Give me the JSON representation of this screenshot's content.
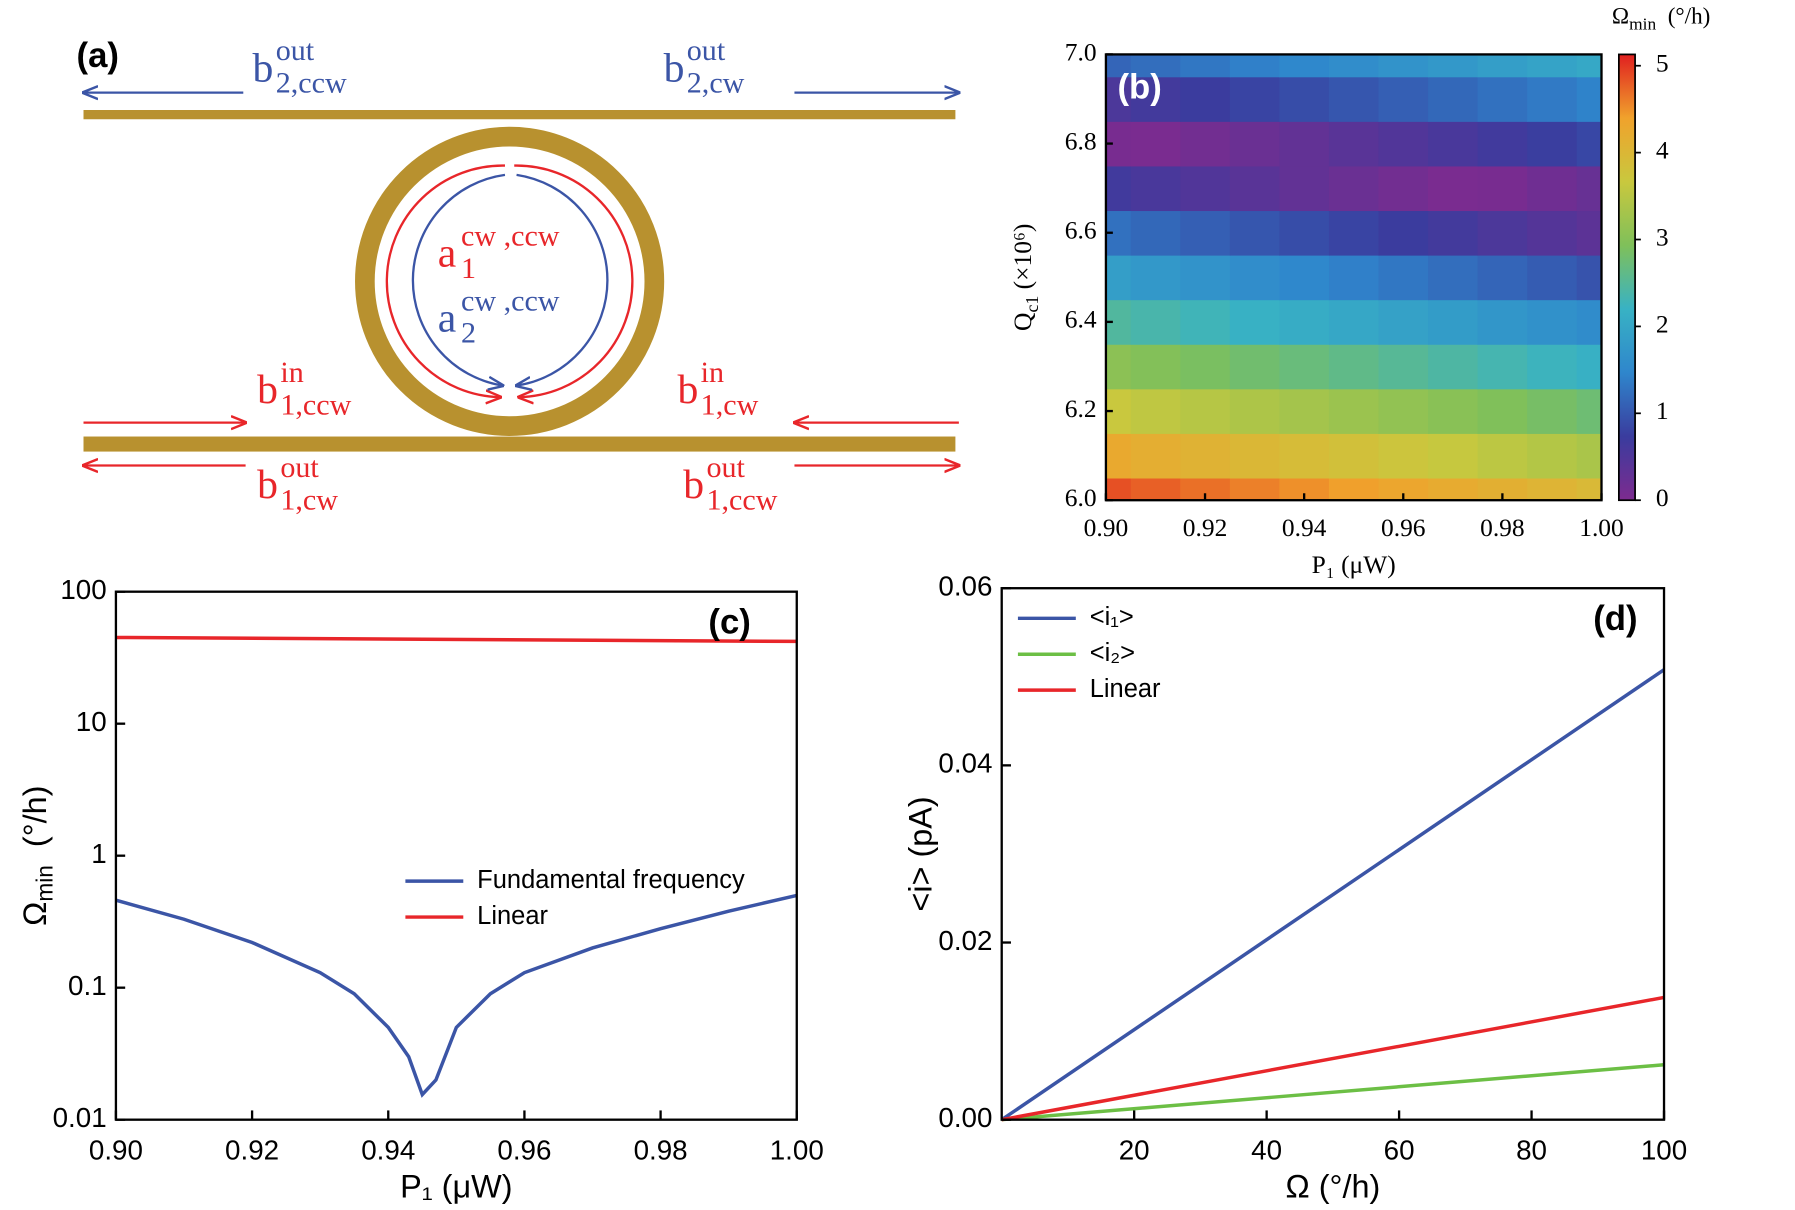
{
  "diagram": {
    "panel_label": "(a)",
    "labels": [
      {
        "base": "b",
        "sup": "out",
        "sub": "2,ccw",
        "color": "#3b55a6"
      },
      {
        "base": "b",
        "sup": "out",
        "sub": "2,cw",
        "color": "#3b55a6"
      },
      {
        "base": "a",
        "sup": "cw ,ccw",
        "sub": "1",
        "color": "#e8262a"
      },
      {
        "base": "a",
        "sup": "cw ,ccw",
        "sub": "2",
        "color": "#3b55a6"
      },
      {
        "base": "b",
        "sup": "in",
        "sub": "1,ccw",
        "color": "#e8262a"
      },
      {
        "base": "b",
        "sup": "in",
        "sub": "1,cw",
        "color": "#e8262a"
      },
      {
        "base": "b",
        "sup": "out",
        "sub": "1,cw",
        "color": "#e8262a"
      },
      {
        "base": "b",
        "sup": "out",
        "sub": "1,ccw",
        "color": "#e8262a"
      }
    ]
  },
  "chart_data": [
    {
      "type": "heatmap",
      "panel_label": "(b)",
      "x": [
        0.9,
        0.91,
        0.92,
        0.93,
        0.94,
        0.95,
        0.96,
        0.97,
        0.98,
        0.99,
        1.0
      ],
      "y": [
        6.0,
        6.1,
        6.2,
        6.3,
        6.4,
        6.5,
        6.6,
        6.7,
        6.8,
        6.9,
        7.0
      ],
      "z": [
        [
          4.86,
          4.77,
          4.68,
          4.59,
          4.5,
          4.41,
          4.32,
          4.23,
          4.14,
          4.05,
          3.96
        ],
        [
          4.26,
          4.17,
          4.08,
          3.99,
          3.9,
          3.81,
          3.72,
          3.63,
          3.54,
          3.45,
          3.36
        ],
        [
          3.66,
          3.57,
          3.48,
          3.39,
          3.3,
          3.21,
          3.12,
          3.03,
          2.94,
          2.85,
          2.76
        ],
        [
          3.06,
          2.97,
          2.88,
          2.79,
          2.7,
          2.61,
          2.52,
          2.43,
          2.34,
          2.25,
          2.16
        ],
        [
          2.46,
          2.37,
          2.28,
          2.19,
          2.1,
          2.01,
          1.92,
          1.83,
          1.74,
          1.65,
          1.56
        ],
        [
          1.86,
          1.77,
          1.68,
          1.59,
          1.5,
          1.41,
          1.32,
          1.23,
          1.14,
          1.05,
          0.96
        ],
        [
          1.26,
          1.17,
          1.08,
          0.99,
          0.9,
          0.81,
          0.72,
          0.63,
          0.54,
          0.45,
          0.36
        ],
        [
          0.66,
          0.57,
          0.48,
          0.39,
          0.3,
          0.21,
          0.12,
          0.03,
          0.06,
          0.15,
          0.24
        ],
        [
          0.06,
          0.03,
          0.12,
          0.21,
          0.3,
          0.39,
          0.48,
          0.57,
          0.66,
          0.75,
          0.84
        ],
        [
          0.54,
          0.63,
          0.72,
          0.81,
          0.9,
          0.99,
          1.08,
          1.17,
          1.26,
          1.35,
          1.44
        ],
        [
          1.14,
          1.23,
          1.32,
          1.41,
          1.5,
          1.59,
          1.68,
          1.77,
          1.86,
          1.95,
          2.04
        ]
      ],
      "xlim": [
        0.9,
        1.0
      ],
      "ylim": [
        6.0,
        7.0
      ],
      "xticks": [
        {
          "value": 0.9,
          "label": "0.90"
        },
        {
          "value": 0.92,
          "label": "0.92"
        },
        {
          "value": 0.94,
          "label": "0.94"
        },
        {
          "value": 0.96,
          "label": "0.96"
        },
        {
          "value": 0.98,
          "label": "0.98"
        },
        {
          "value": 1.0,
          "label": "1.00"
        }
      ],
      "yticks": [
        {
          "value": 6,
          "label": "6.0"
        },
        6.2,
        6.4,
        6.6,
        6.8,
        {
          "value": 7,
          "label": "7.0"
        }
      ],
      "zlim": [
        0,
        5.13
      ],
      "zticks": [
        0,
        1,
        2,
        3,
        4,
        5
      ],
      "colormap": [
        "#7d2b8f",
        "#3a3c9e",
        "#2f86cc",
        "#38b2c4",
        "#7fc05a",
        "#c9c83e",
        "#f0a22c",
        "#e02020"
      ],
      "xlabel": "P₁ (μW)",
      "ylabel": {
        "main": "Q",
        "sub": "c1",
        "rest": " (×10⁶)"
      },
      "zlabel": {
        "main": "Ω",
        "sub": "min",
        "rest": "  (°/h)"
      }
    },
    {
      "type": "line",
      "panel_label": "(c)",
      "log_y": true,
      "xlim": [
        0.9,
        1.0
      ],
      "ylim": [
        0.01,
        100
      ],
      "xticks": [
        {
          "value": 0.9,
          "label": "0.90"
        },
        {
          "value": 0.92,
          "label": "0.92"
        },
        {
          "value": 0.94,
          "label": "0.94"
        },
        {
          "value": 0.96,
          "label": "0.96"
        },
        {
          "value": 0.98,
          "label": "0.98"
        },
        {
          "value": 1.0,
          "label": "1.00"
        }
      ],
      "yticks": [
        0.01,
        0.1,
        1,
        10,
        100
      ],
      "xlabel": "P₁ (μW)",
      "ylabel": {
        "main": "Ω",
        "sub": "min",
        "rest": "  (°/h)"
      },
      "legend": "center",
      "series": [
        {
          "name": "Fundamental frequency",
          "color": "#3b55a6",
          "x": [
            0.9,
            0.91,
            0.92,
            0.93,
            0.935,
            0.94,
            0.943,
            0.945,
            0.947,
            0.95,
            0.955,
            0.96,
            0.97,
            0.98,
            0.99,
            1.0
          ],
          "values": [
            0.46,
            0.33,
            0.22,
            0.13,
            0.09,
            0.05,
            0.03,
            0.0155,
            0.02,
            0.05,
            0.09,
            0.13,
            0.2,
            0.28,
            0.38,
            0.5
          ]
        },
        {
          "name": "Linear",
          "color": "#e8262a",
          "x": [
            0.9,
            1.0
          ],
          "values": [
            45,
            42
          ]
        }
      ]
    },
    {
      "type": "line",
      "panel_label": "(d)",
      "xlim": [
        0,
        100
      ],
      "ylim": [
        0,
        0.06
      ],
      "xticks": [
        20,
        40,
        60,
        80,
        100
      ],
      "yticks": [
        {
          "value": 0,
          "label": "0.00"
        },
        0.02,
        0.04,
        0.06
      ],
      "xlabel": "Ω (°/h)",
      "ylabel": "<i> (pA)",
      "legend": "upper left",
      "series": [
        {
          "name": "<i₁>",
          "color": "#3b55a6",
          "x": [
            0,
            100
          ],
          "values": [
            0,
            0.0508
          ]
        },
        {
          "name": "<i₂>",
          "color": "#6cbf45",
          "x": [
            0,
            100
          ],
          "values": [
            0,
            0.0062
          ]
        },
        {
          "name": "Linear",
          "color": "#e8262a",
          "x": [
            0,
            100
          ],
          "values": [
            0,
            0.0138
          ]
        }
      ]
    }
  ]
}
